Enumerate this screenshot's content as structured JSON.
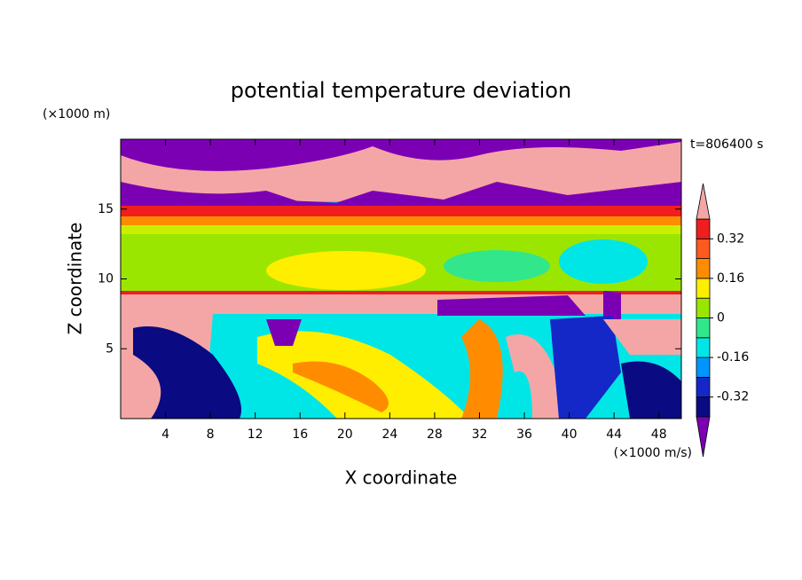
{
  "chart_data": {
    "type": "contour",
    "title": "potential temperature deviation",
    "x_label": "X coordinate",
    "y_label": "Z coordinate",
    "x_unit": "(×1000 m/s)",
    "y_unit": "(×1000 m)",
    "annotation": "t=806400 s",
    "xlim": [
      0,
      50
    ],
    "ylim": [
      0,
      20
    ],
    "xticks": [
      4,
      8,
      12,
      16,
      20,
      24,
      28,
      32,
      36,
      40,
      44,
      48
    ],
    "yticks": [
      5,
      10,
      15
    ],
    "colorbar": {
      "levels": [
        -0.4,
        -0.32,
        -0.24,
        -0.16,
        -0.08,
        0,
        0.08,
        0.16,
        0.24,
        0.32,
        0.4
      ],
      "colors": [
        "#7b00b4",
        "#0a0a82",
        "#1428c8",
        "#0096ff",
        "#00e6e6",
        "#32e68c",
        "#9be600",
        "#ffee00",
        "#ff8c00",
        "#ff5a1e",
        "#f01e1e",
        "#f4a6a6"
      ],
      "ticks": [
        -0.32,
        -0.16,
        0,
        0.16,
        0.32
      ]
    }
  }
}
